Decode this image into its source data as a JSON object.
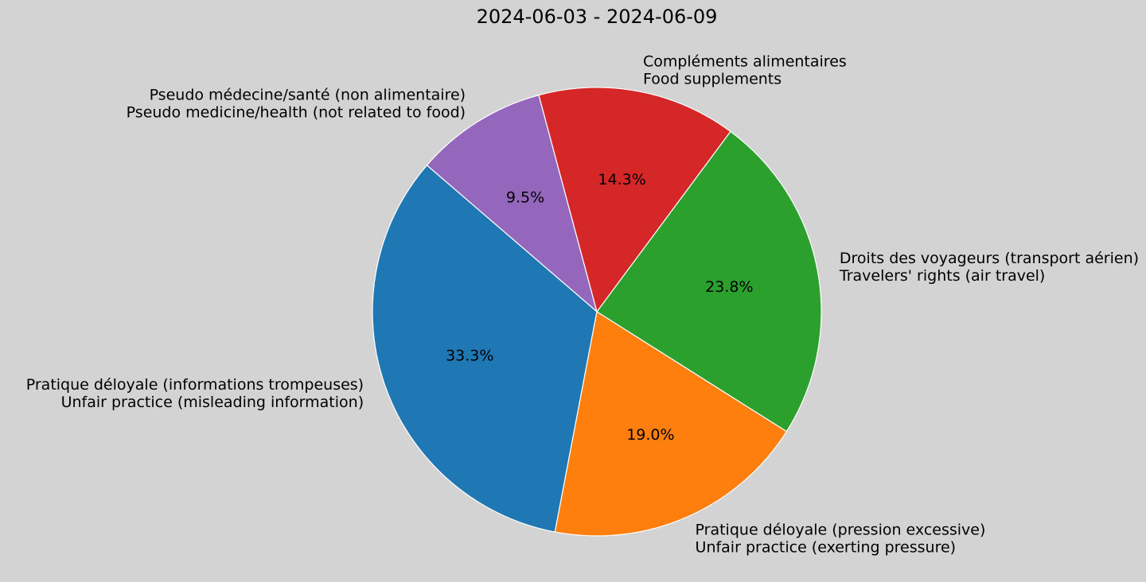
{
  "chart_data": {
    "type": "pie",
    "title": "2024-06-03 - 2024-06-09",
    "start_angle_deg": 105,
    "direction": "counterclockwise",
    "slices": [
      {
        "label_fr": "Pseudo médecine/santé (non alimentaire)",
        "label_en": "Pseudo medicine/health (not related to food)",
        "value": 9.5,
        "pct_label": "9.5%",
        "color": "#9467bd"
      },
      {
        "label_fr": "Pratique déloyale (informations trompeuses)",
        "label_en": "Unfair practice (misleading information)",
        "value": 33.3,
        "pct_label": "33.3%",
        "color": "#1f77b4"
      },
      {
        "label_fr": "Pratique déloyale (pression excessive)",
        "label_en": "Unfair practice (exerting pressure)",
        "value": 19.0,
        "pct_label": "19.0%",
        "color": "#ff7f0e"
      },
      {
        "label_fr": "Droits des voyageurs (transport aérien)",
        "label_en": "Travelers' rights (air travel)",
        "value": 23.8,
        "pct_label": "23.8%",
        "color": "#2ca02c"
      },
      {
        "label_fr": "Compléments alimentaires",
        "label_en": "Food supplements",
        "value": 14.3,
        "pct_label": "14.3%",
        "color": "#d62728"
      }
    ]
  },
  "background_color": "#d3d3d3"
}
